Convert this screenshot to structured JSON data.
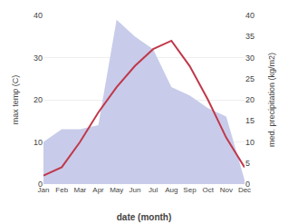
{
  "chart_data": {
    "type": "line",
    "xlabel": "date (month)",
    "ylabel": "max temp (C)",
    "y2label": "med. precipitation (kg/m2)",
    "categories": [
      "Jan",
      "Feb",
      "Mar",
      "Apr",
      "May",
      "Jun",
      "Jul",
      "Aug",
      "Sep",
      "Oct",
      "Nov",
      "Dec"
    ],
    "series": [
      {
        "type": "area",
        "axis": "y2",
        "color": "#c8ccea",
        "values": [
          10,
          13,
          13,
          14,
          39,
          35,
          32,
          23,
          21,
          18,
          16,
          1
        ]
      },
      {
        "type": "line",
        "color": "#c0384a",
        "values": [
          2,
          4,
          10,
          17,
          23,
          28,
          32,
          34,
          28,
          20,
          11,
          4
        ]
      }
    ],
    "ylim": [
      0,
      40
    ],
    "yticks": [
      0,
      10,
      20,
      30,
      40
    ],
    "y2lim": [
      0,
      40
    ],
    "y2ticks": [
      0,
      5,
      10,
      15,
      20,
      25,
      30,
      35,
      40
    ],
    "grid": true
  }
}
